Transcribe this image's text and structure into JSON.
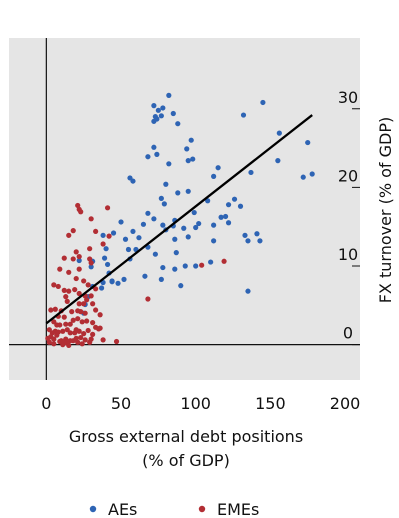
{
  "chart_data": {
    "type": "scatter",
    "xlabel": [
      "Gross external debt positions",
      "(% of GDP)"
    ],
    "ylabel": "FX turnover (% of GDP)",
    "xlim": [
      -25,
      210
    ],
    "ylim": [
      -4.5,
      39
    ],
    "x_ticks": [
      0,
      50,
      100,
      150,
      200
    ],
    "y_ticks": [
      0,
      10,
      20,
      30
    ],
    "grid": false,
    "legend": "bottom",
    "series": [
      {
        "name": "AEs",
        "color": "#2e64b4",
        "points": [
          [
            82,
            31.7
          ],
          [
            72,
            30.4
          ],
          [
            78,
            30.1
          ],
          [
            75,
            29.8
          ],
          [
            85,
            29.4
          ],
          [
            145,
            30.8
          ],
          [
            73,
            29.0
          ],
          [
            77,
            29.1
          ],
          [
            88,
            28.1
          ],
          [
            72,
            28.4
          ],
          [
            74,
            28.7
          ],
          [
            156,
            26.9
          ],
          [
            132,
            29.2
          ],
          [
            175,
            25.7
          ],
          [
            97,
            26.0
          ],
          [
            94,
            24.9
          ],
          [
            72,
            25.1
          ],
          [
            74,
            24.2
          ],
          [
            68,
            23.9
          ],
          [
            95,
            23.4
          ],
          [
            98,
            23.6
          ],
          [
            155,
            23.4
          ],
          [
            82,
            23.0
          ],
          [
            115,
            22.5
          ],
          [
            137,
            21.9
          ],
          [
            112,
            21.4
          ],
          [
            178,
            21.7
          ],
          [
            172,
            21.3
          ],
          [
            56,
            21.2
          ],
          [
            58,
            20.8
          ],
          [
            80,
            20.4
          ],
          [
            95,
            19.5
          ],
          [
            88,
            19.3
          ],
          [
            108,
            18.3
          ],
          [
            122,
            17.8
          ],
          [
            126,
            18.5
          ],
          [
            77,
            18.6
          ],
          [
            79,
            17.9
          ],
          [
            99,
            16.8
          ],
          [
            130,
            17.6
          ],
          [
            120,
            16.3
          ],
          [
            68,
            16.7
          ],
          [
            72,
            16.0
          ],
          [
            86,
            15.8
          ],
          [
            85,
            15.1
          ],
          [
            100,
            14.9
          ],
          [
            102,
            15.4
          ],
          [
            112,
            15.2
          ],
          [
            117,
            16.2
          ],
          [
            122,
            15.5
          ],
          [
            65,
            15.3
          ],
          [
            50,
            15.6
          ],
          [
            78,
            15.2
          ],
          [
            80,
            14.6
          ],
          [
            92,
            14.8
          ],
          [
            58,
            14.4
          ],
          [
            62,
            13.6
          ],
          [
            68,
            12.4
          ],
          [
            53,
            13.4
          ],
          [
            45,
            14.2
          ],
          [
            38,
            13.9
          ],
          [
            40,
            12.2
          ],
          [
            86,
            13.4
          ],
          [
            95,
            13.7
          ],
          [
            112,
            13.2
          ],
          [
            133,
            13.9
          ],
          [
            135,
            13.2
          ],
          [
            141,
            14.1
          ],
          [
            143,
            13.2
          ],
          [
            87,
            11.7
          ],
          [
            60,
            12.1
          ],
          [
            55,
            12.1
          ],
          [
            73,
            11.5
          ],
          [
            56,
            10.9
          ],
          [
            39,
            11.0
          ],
          [
            41,
            10.2
          ],
          [
            31,
            10.6
          ],
          [
            22,
            10.7
          ],
          [
            30,
            9.9
          ],
          [
            42,
            9.1
          ],
          [
            44,
            8.0
          ],
          [
            48,
            7.8
          ],
          [
            100,
            10.0
          ],
          [
            110,
            10.5
          ],
          [
            78,
            9.8
          ],
          [
            93,
            10.0
          ],
          [
            86,
            9.6
          ],
          [
            77,
            8.3
          ],
          [
            66,
            8.7
          ],
          [
            52,
            8.3
          ],
          [
            44,
            8.1
          ],
          [
            38,
            7.9
          ],
          [
            31,
            7.4
          ],
          [
            90,
            7.5
          ],
          [
            135,
            6.8
          ],
          [
            37,
            7.2
          ],
          [
            26,
            5.1
          ],
          [
            25,
            4.0
          ],
          [
            28,
            6.1
          ]
        ]
      },
      {
        "name": "EMEs",
        "color": "#b22e34",
        "points": [
          [
            21,
            17.7
          ],
          [
            22,
            17.2
          ],
          [
            23,
            16.9
          ],
          [
            41,
            17.4
          ],
          [
            30,
            16.0
          ],
          [
            18,
            14.5
          ],
          [
            33,
            14.4
          ],
          [
            15,
            13.9
          ],
          [
            42,
            13.8
          ],
          [
            38,
            12.8
          ],
          [
            29,
            12.2
          ],
          [
            20,
            11.8
          ],
          [
            12,
            11.0
          ],
          [
            22,
            11.2
          ],
          [
            18,
            10.9
          ],
          [
            29,
            10.9
          ],
          [
            30,
            10.4
          ],
          [
            9,
            9.6
          ],
          [
            15,
            9.2
          ],
          [
            22,
            9.6
          ],
          [
            20,
            8.4
          ],
          [
            25,
            8.1
          ],
          [
            28,
            7.6
          ],
          [
            5,
            7.6
          ],
          [
            8,
            7.4
          ],
          [
            12,
            6.9
          ],
          [
            15,
            6.8
          ],
          [
            19,
            7.0
          ],
          [
            22,
            6.5
          ],
          [
            26,
            6.2
          ],
          [
            30,
            6.2
          ],
          [
            33,
            7.1
          ],
          [
            13,
            6.1
          ],
          [
            14,
            5.5
          ],
          [
            22,
            5.2
          ],
          [
            25,
            5.2
          ],
          [
            27,
            5.7
          ],
          [
            31,
            5.2
          ],
          [
            10,
            4.3
          ],
          [
            6,
            4.5
          ],
          [
            3,
            4.4
          ],
          [
            8,
            3.6
          ],
          [
            12,
            3.5
          ],
          [
            17,
            4.2
          ],
          [
            21,
            4.3
          ],
          [
            23,
            4.2
          ],
          [
            26,
            4.0
          ],
          [
            33,
            4.4
          ],
          [
            36,
            3.8
          ],
          [
            5,
            2.9
          ],
          [
            7,
            2.5
          ],
          [
            9,
            2.5
          ],
          [
            13,
            2.6
          ],
          [
            16,
            2.6
          ],
          [
            18,
            3.1
          ],
          [
            21,
            3.3
          ],
          [
            24,
            2.9
          ],
          [
            27,
            3.0
          ],
          [
            31,
            2.8
          ],
          [
            33,
            2.2
          ],
          [
            35,
            2.0
          ],
          [
            2,
            1.9
          ],
          [
            4,
            1.5
          ],
          [
            6,
            1.7
          ],
          [
            8,
            1.6
          ],
          [
            11,
            1.7
          ],
          [
            14,
            1.9
          ],
          [
            16,
            1.5
          ],
          [
            19,
            1.5
          ],
          [
            22,
            1.7
          ],
          [
            25,
            1.4
          ],
          [
            28,
            1.8
          ],
          [
            31,
            1.3
          ],
          [
            3,
            1.0
          ],
          [
            5,
            0.7
          ],
          [
            7,
            1.2
          ],
          [
            10,
            0.5
          ],
          [
            13,
            0.7
          ],
          [
            16,
            0.5
          ],
          [
            20,
            0.8
          ],
          [
            23,
            0.9
          ],
          [
            26,
            0.6
          ],
          [
            30,
            0.7
          ],
          [
            2,
            0.3
          ],
          [
            5,
            0.1
          ],
          [
            11,
            0.0
          ],
          [
            14,
            0.2
          ],
          [
            21,
            0.3
          ],
          [
            24,
            0.1
          ],
          [
            29,
            0.3
          ],
          [
            20,
            1.9
          ],
          [
            12,
            0.2
          ],
          [
            36,
            2.1
          ],
          [
            18,
            0.5
          ],
          [
            9,
            0.4
          ],
          [
            47,
            0.4
          ],
          [
            38,
            0.6
          ],
          [
            68,
            5.8
          ],
          [
            104,
            10.1
          ],
          [
            119,
            10.6
          ],
          [
            15,
            -0.1
          ],
          [
            1,
            0.8
          ]
        ]
      }
    ],
    "trendline": {
      "color": "#000000",
      "x": [
        0,
        178
      ],
      "y": [
        2.7,
        29.2
      ]
    }
  }
}
